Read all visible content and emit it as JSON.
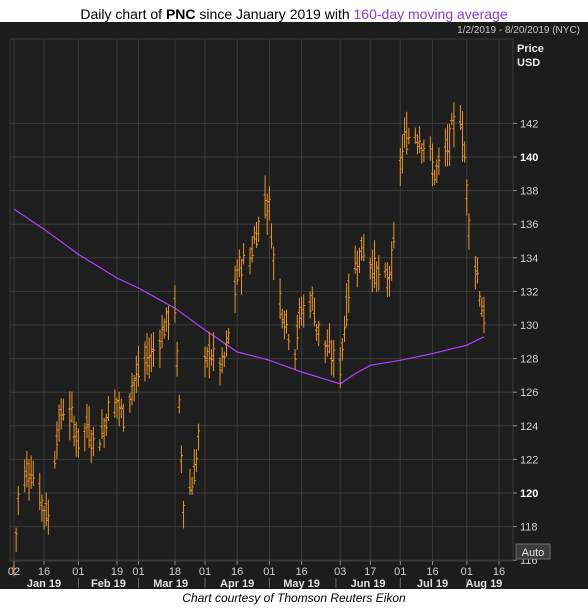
{
  "title": {
    "prefix": "Daily chart of ",
    "ticker": "PNC",
    "middle": " since January 2019 with ",
    "highlight": "160-day moving average"
  },
  "date_range": "1/2/2019 - 8/20/2019 (NYC)",
  "credit": "Chart courtesy of Thomson Reuters Eikon",
  "auto_button": "Auto",
  "colors": {
    "price_bars": "#e8962a",
    "moving_average": "#b040ff",
    "background": "#1c1c1c"
  },
  "chart_data": {
    "type": "ohlc",
    "ylabel": "Price",
    "yunit": "USD",
    "ylim": [
      115,
      144
    ],
    "y_ticks": [
      {
        "value": 116,
        "label": "116",
        "bold": false
      },
      {
        "value": 118,
        "label": "118",
        "bold": false
      },
      {
        "value": 120,
        "label": "120",
        "bold": true
      },
      {
        "value": 122,
        "label": "122",
        "bold": false
      },
      {
        "value": 124,
        "label": "124",
        "bold": false
      },
      {
        "value": 126,
        "label": "126",
        "bold": false
      },
      {
        "value": 128,
        "label": "128",
        "bold": false
      },
      {
        "value": 130,
        "label": "130",
        "bold": false
      },
      {
        "value": 132,
        "label": "132",
        "bold": false
      },
      {
        "value": 134,
        "label": "134",
        "bold": false
      },
      {
        "value": 136,
        "label": "136",
        "bold": false
      },
      {
        "value": 138,
        "label": "138",
        "bold": false
      },
      {
        "value": 140,
        "label": "140",
        "bold": true
      },
      {
        "value": 142,
        "label": "142",
        "bold": false
      }
    ],
    "x_day_ticks": [
      {
        "date": "2019-01-02",
        "label": "02"
      },
      {
        "date": "2019-01-16",
        "label": "16"
      },
      {
        "date": "2019-02-01",
        "label": "01"
      },
      {
        "date": "2019-02-19",
        "label": "19"
      },
      {
        "date": "2019-03-01",
        "label": "01"
      },
      {
        "date": "2019-03-18",
        "label": "18"
      },
      {
        "date": "2019-04-01",
        "label": "01"
      },
      {
        "date": "2019-04-16",
        "label": "16"
      },
      {
        "date": "2019-05-01",
        "label": "01"
      },
      {
        "date": "2019-05-16",
        "label": "16"
      },
      {
        "date": "2019-06-03",
        "label": "03"
      },
      {
        "date": "2019-06-17",
        "label": "17"
      },
      {
        "date": "2019-07-01",
        "label": "01"
      },
      {
        "date": "2019-07-16",
        "label": "16"
      },
      {
        "date": "2019-08-01",
        "label": "01"
      },
      {
        "date": "2019-08-16",
        "label": "16"
      }
    ],
    "x_month_labels": [
      {
        "date": "2019-01-16",
        "label": "Jan 19"
      },
      {
        "date": "2019-02-15",
        "label": "Feb 19"
      },
      {
        "date": "2019-03-16",
        "label": "Mar 19"
      },
      {
        "date": "2019-04-16",
        "label": "Apr 19"
      },
      {
        "date": "2019-05-16",
        "label": "May 19"
      },
      {
        "date": "2019-06-16",
        "label": "Jun 19"
      },
      {
        "date": "2019-07-16",
        "label": "Jul 19"
      },
      {
        "date": "2019-08-09",
        "label": "Aug 19"
      }
    ],
    "price_path": [
      {
        "date": "2019-01-02",
        "close": 115.5
      },
      {
        "date": "2019-01-04",
        "close": 119.8
      },
      {
        "date": "2019-01-08",
        "close": 121.5
      },
      {
        "date": "2019-01-11",
        "close": 121.0
      },
      {
        "date": "2019-01-15",
        "close": 119.5
      },
      {
        "date": "2019-01-18",
        "close": 118.5
      },
      {
        "date": "2019-01-22",
        "close": 123.5
      },
      {
        "date": "2019-01-25",
        "close": 125.0
      },
      {
        "date": "2019-01-29",
        "close": 124.5
      },
      {
        "date": "2019-02-01",
        "close": 123.0
      },
      {
        "date": "2019-02-05",
        "close": 124.0
      },
      {
        "date": "2019-02-08",
        "close": 123.0
      },
      {
        "date": "2019-02-12",
        "close": 123.5
      },
      {
        "date": "2019-02-15",
        "close": 125.0
      },
      {
        "date": "2019-02-19",
        "close": 125.5
      },
      {
        "date": "2019-02-22",
        "close": 124.5
      },
      {
        "date": "2019-02-26",
        "close": 126.5
      },
      {
        "date": "2019-03-01",
        "close": 127.0
      },
      {
        "date": "2019-03-05",
        "close": 128.0
      },
      {
        "date": "2019-03-08",
        "close": 128.5
      },
      {
        "date": "2019-03-12",
        "close": 129.5
      },
      {
        "date": "2019-03-15",
        "close": 130.5
      },
      {
        "date": "2019-03-18",
        "close": 131.0
      },
      {
        "date": "2019-03-20",
        "close": 125.0
      },
      {
        "date": "2019-03-22",
        "close": 119.5
      },
      {
        "date": "2019-03-26",
        "close": 120.5
      },
      {
        "date": "2019-03-28",
        "close": 122.0
      },
      {
        "date": "2019-04-01",
        "close": 127.5
      },
      {
        "date": "2019-04-03",
        "close": 128.5
      },
      {
        "date": "2019-04-05",
        "close": 128.0
      },
      {
        "date": "2019-04-09",
        "close": 127.5
      },
      {
        "date": "2019-04-11",
        "close": 128.5
      },
      {
        "date": "2019-04-15",
        "close": 132.0
      },
      {
        "date": "2019-04-17",
        "close": 133.5
      },
      {
        "date": "2019-04-22",
        "close": 134.0
      },
      {
        "date": "2019-04-25",
        "close": 135.5
      },
      {
        "date": "2019-04-29",
        "close": 137.5
      },
      {
        "date": "2019-05-01",
        "close": 137.0
      },
      {
        "date": "2019-05-03",
        "close": 134.0
      },
      {
        "date": "2019-05-07",
        "close": 131.0
      },
      {
        "date": "2019-05-09",
        "close": 130.0
      },
      {
        "date": "2019-05-13",
        "close": 128.5
      },
      {
        "date": "2019-05-15",
        "close": 130.5
      },
      {
        "date": "2019-05-17",
        "close": 131.0
      },
      {
        "date": "2019-05-21",
        "close": 131.5
      },
      {
        "date": "2019-05-23",
        "close": 130.0
      },
      {
        "date": "2019-05-28",
        "close": 128.5
      },
      {
        "date": "2019-05-31",
        "close": 128.0
      },
      {
        "date": "2019-06-03",
        "close": 127.5
      },
      {
        "date": "2019-06-05",
        "close": 130.0
      },
      {
        "date": "2019-06-07",
        "close": 132.0
      },
      {
        "date": "2019-06-11",
        "close": 134.0
      },
      {
        "date": "2019-06-14",
        "close": 134.5
      },
      {
        "date": "2019-06-18",
        "close": 133.5
      },
      {
        "date": "2019-06-21",
        "close": 133.0
      },
      {
        "date": "2019-06-25",
        "close": 132.5
      },
      {
        "date": "2019-06-28",
        "close": 134.5
      },
      {
        "date": "2019-07-01",
        "close": 139.5
      },
      {
        "date": "2019-07-03",
        "close": 141.0
      },
      {
        "date": "2019-07-08",
        "close": 141.5
      },
      {
        "date": "2019-07-11",
        "close": 141.0
      },
      {
        "date": "2019-07-15",
        "close": 140.0
      },
      {
        "date": "2019-07-17",
        "close": 139.0
      },
      {
        "date": "2019-07-19",
        "close": 139.5
      },
      {
        "date": "2019-07-23",
        "close": 140.5
      },
      {
        "date": "2019-07-26",
        "close": 142.0
      },
      {
        "date": "2019-07-29",
        "close": 142.5
      },
      {
        "date": "2019-07-31",
        "close": 140.0
      },
      {
        "date": "2019-08-02",
        "close": 136.0
      },
      {
        "date": "2019-08-06",
        "close": 133.0
      },
      {
        "date": "2019-08-08",
        "close": 131.0
      },
      {
        "date": "2019-08-09",
        "close": 130.5
      }
    ],
    "moving_average": [
      {
        "date": "2019-01-02",
        "value": 136.9
      },
      {
        "date": "2019-01-16",
        "value": 135.7
      },
      {
        "date": "2019-02-01",
        "value": 134.2
      },
      {
        "date": "2019-02-19",
        "value": 132.8
      },
      {
        "date": "2019-03-01",
        "value": 132.2
      },
      {
        "date": "2019-03-18",
        "value": 131.0
      },
      {
        "date": "2019-04-01",
        "value": 129.7
      },
      {
        "date": "2019-04-16",
        "value": 128.4
      },
      {
        "date": "2019-05-01",
        "value": 127.9
      },
      {
        "date": "2019-05-16",
        "value": 127.2
      },
      {
        "date": "2019-06-03",
        "value": 126.5
      },
      {
        "date": "2019-06-10",
        "value": 127.1
      },
      {
        "date": "2019-06-17",
        "value": 127.6
      },
      {
        "date": "2019-07-01",
        "value": 127.9
      },
      {
        "date": "2019-07-16",
        "value": 128.3
      },
      {
        "date": "2019-08-01",
        "value": 128.8
      },
      {
        "date": "2019-08-09",
        "value": 129.3
      }
    ]
  }
}
